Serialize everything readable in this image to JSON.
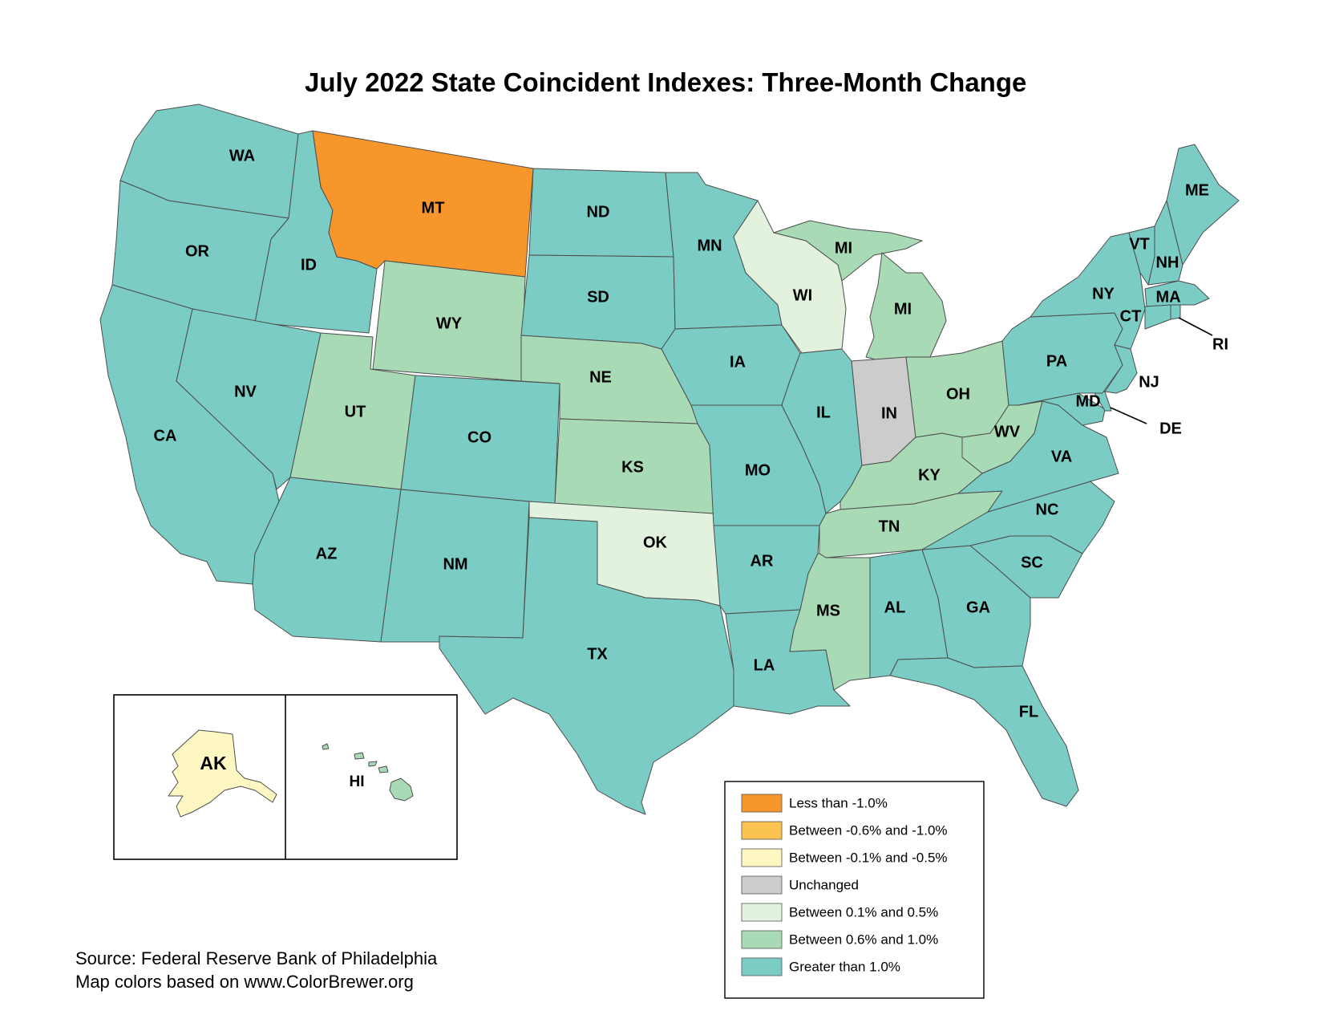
{
  "title": "July 2022 State Coincident Indexes: Three-Month Change",
  "colors": {
    "lt_neg1": "#f7962b",
    "neg06_10": "#fbc450",
    "neg01_05": "#fff7c2",
    "unchanged": "#cccccc",
    "pos01_05": "#e2f2df",
    "pos06_10": "#a8dab5",
    "gt1": "#7accc4"
  },
  "legend": [
    {
      "key": "lt_neg1",
      "label": "Less than -1.0%"
    },
    {
      "key": "neg06_10",
      "label": "Between -0.6% and -1.0%"
    },
    {
      "key": "neg01_05",
      "label": "Between -0.1% and -0.5%"
    },
    {
      "key": "unchanged",
      "label": "Unchanged"
    },
    {
      "key": "pos01_05",
      "label": "Between 0.1% and 0.5%"
    },
    {
      "key": "pos06_10",
      "label": "Between 0.6% and 1.0%"
    },
    {
      "key": "gt1",
      "label": "Greater than 1.0%"
    }
  ],
  "states": {
    "WA": "gt1",
    "OR": "gt1",
    "CA": "gt1",
    "ID": "gt1",
    "NV": "gt1",
    "MT": "lt_neg1",
    "WY": "pos06_10",
    "UT": "pos06_10",
    "AZ": "gt1",
    "CO": "gt1",
    "NM": "gt1",
    "ND": "gt1",
    "SD": "gt1",
    "NE": "pos06_10",
    "KS": "pos06_10",
    "OK": "pos01_05",
    "TX": "gt1",
    "MN": "gt1",
    "IA": "gt1",
    "MO": "gt1",
    "AR": "gt1",
    "LA": "gt1",
    "WI": "pos01_05",
    "IL": "gt1",
    "MI": "pos06_10",
    "IN": "unchanged",
    "OH": "pos06_10",
    "KY": "pos06_10",
    "TN": "pos06_10",
    "MS": "pos06_10",
    "AL": "gt1",
    "GA": "gt1",
    "FL": "gt1",
    "SC": "gt1",
    "NC": "gt1",
    "VA": "gt1",
    "WV": "pos06_10",
    "PA": "gt1",
    "NY": "gt1",
    "VT": "gt1",
    "NH": "gt1",
    "ME": "gt1",
    "MA": "gt1",
    "CT": "gt1",
    "RI": "gt1",
    "NJ": "gt1",
    "DE": "gt1",
    "MD": "gt1",
    "AK": "neg01_05",
    "HI": "pos06_10"
  },
  "labels": {
    "WA": "WA",
    "OR": "OR",
    "CA": "CA",
    "ID": "ID",
    "NV": "NV",
    "MT": "MT",
    "WY": "WY",
    "UT": "UT",
    "AZ": "AZ",
    "CO": "CO",
    "NM": "NM",
    "ND": "ND",
    "SD": "SD",
    "NE": "NE",
    "KS": "KS",
    "OK": "OK",
    "TX": "TX",
    "MN": "MN",
    "IA": "IA",
    "MO": "MO",
    "AR": "AR",
    "LA": "LA",
    "WI": "WI",
    "IL": "IL",
    "MI_UP": "MI",
    "MI": "MI",
    "IN": "IN",
    "OH": "OH",
    "KY": "KY",
    "TN": "TN",
    "MS": "MS",
    "AL": "AL",
    "GA": "GA",
    "FL": "FL",
    "SC": "SC",
    "NC": "NC",
    "VA": "VA",
    "WV": "WV",
    "PA": "PA",
    "NY": "NY",
    "VT": "VT",
    "NH": "NH",
    "ME": "ME",
    "MA": "MA",
    "CT": "CT",
    "RI": "RI",
    "NJ": "NJ",
    "DE": "DE",
    "MD": "MD",
    "AK": "AK",
    "HI": "HI"
  },
  "source": {
    "line1": "Source: Federal Reserve Bank of Philadelphia",
    "line2": "Map colors based on www.ColorBrewer.org"
  }
}
